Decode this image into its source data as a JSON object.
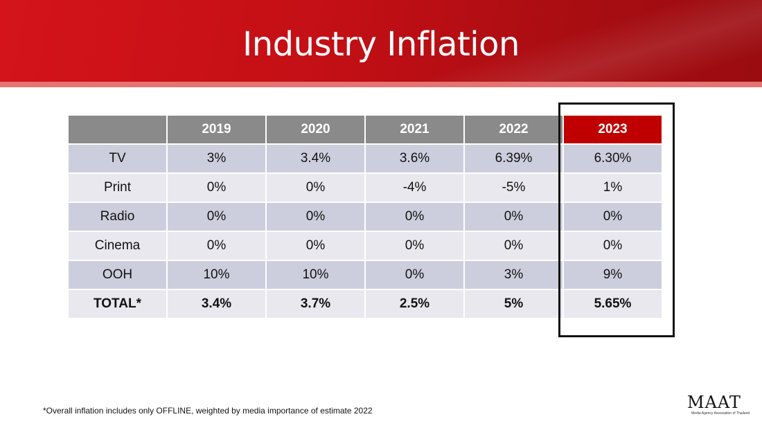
{
  "slide": {
    "title": "Industry Inflation",
    "footnote": "*Overall inflation includes only OFFLINE, weighted by media importance of estimate 2022",
    "accent_color": "#c00000",
    "highlighted_column": "2023"
  },
  "table": {
    "corner": "",
    "headers": [
      "2019",
      "2020",
      "2021",
      "2022",
      "2023"
    ],
    "rows": [
      {
        "label": "TV",
        "values": [
          "3%",
          "3.4%",
          "3.6%",
          "6.39%",
          "6.30%"
        ]
      },
      {
        "label": "Print",
        "values": [
          "0%",
          "0%",
          "-4%",
          "-5%",
          "1%"
        ]
      },
      {
        "label": "Radio",
        "values": [
          "0%",
          "0%",
          "0%",
          "0%",
          "0%"
        ]
      },
      {
        "label": "Cinema",
        "values": [
          "0%",
          "0%",
          "0%",
          "0%",
          "0%"
        ]
      },
      {
        "label": "OOH",
        "values": [
          "10%",
          "10%",
          "0%",
          "3%",
          "9%"
        ]
      },
      {
        "label": "TOTAL*",
        "values": [
          "3.4%",
          "3.7%",
          "2.5%",
          "5%",
          "5.65%"
        ]
      }
    ]
  },
  "logo": {
    "text": "MAAT",
    "subtitle": "Media Agency Association of Thailand"
  }
}
